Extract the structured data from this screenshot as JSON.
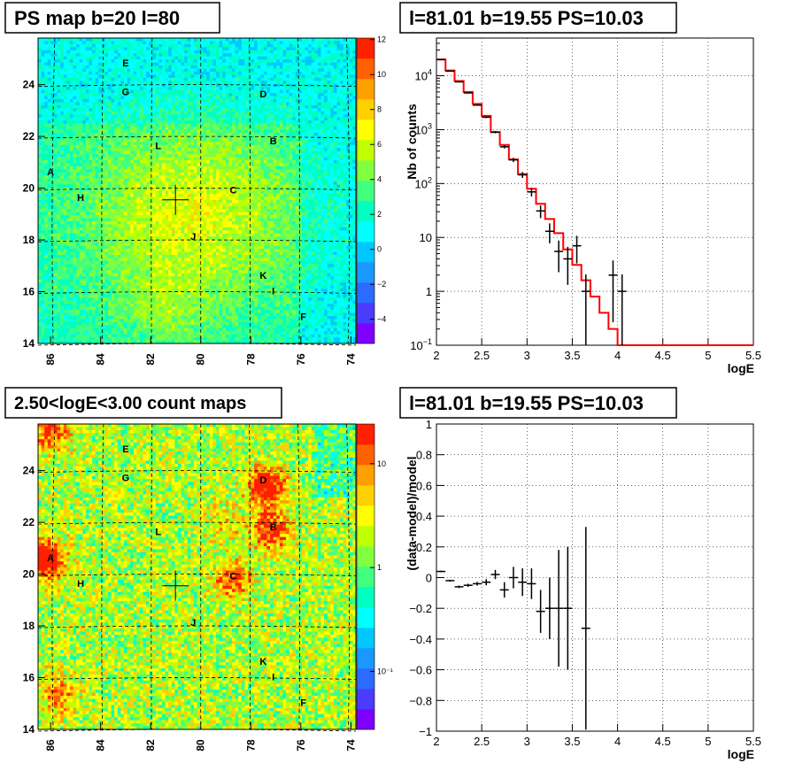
{
  "colors": {
    "frame": "#000000",
    "grid": "#000000",
    "model": "#ff0000",
    "data": "#000000",
    "palette": [
      "#7f00ff",
      "#4a3cff",
      "#2c6bff",
      "#1a98ff",
      "#00c8ff",
      "#00ffff",
      "#00ffc0",
      "#40ff80",
      "#80ff40",
      "#c0ff00",
      "#ffff00",
      "#ffd000",
      "#ffa000",
      "#ff6000",
      "#ff2000"
    ]
  },
  "panels": {
    "ps_map": {
      "title": "PS map b=20 l=80",
      "x_ticks": [
        "86",
        "84",
        "82",
        "80",
        "78",
        "76",
        "74"
      ],
      "y_ticks": [
        "14",
        "16",
        "18",
        "20",
        "22",
        "24"
      ],
      "colorbar_ticks": [
        "12",
        "10",
        "8",
        "6",
        "4",
        "2",
        "0",
        "−2",
        "−4"
      ],
      "sources": [
        "E",
        "G",
        "D",
        "L",
        "B",
        "A",
        "C",
        "H",
        "J",
        "K",
        "I",
        "F"
      ]
    },
    "count_map": {
      "title": "2.50<logE<3.00 count maps",
      "x_ticks": [
        "86",
        "84",
        "82",
        "80",
        "78",
        "76",
        "74"
      ],
      "y_ticks": [
        "14",
        "16",
        "18",
        "20",
        "22",
        "24"
      ],
      "colorbar_ticks": [
        "10",
        "1",
        "10⁻¹"
      ],
      "sources": [
        "E",
        "G",
        "D",
        "L",
        "B",
        "A",
        "C",
        "H",
        "J",
        "K",
        "I",
        "F"
      ]
    },
    "spectrum": {
      "title": "l=81.01 b=19.55 PS=10.03",
      "xlabel": "logE",
      "ylabel": "Nb of counts",
      "x_ticks": [
        "2",
        "2.5",
        "3",
        "3.5",
        "4",
        "4.5",
        "5",
        "5.5"
      ],
      "y_ticks": [
        "10",
        "1"
      ],
      "y_ticks_exp": [
        {
          "base": "10",
          "exp": "4"
        },
        {
          "base": "10",
          "exp": "3"
        },
        {
          "base": "10",
          "exp": "2"
        },
        {
          "base": "10",
          "exp": "−1"
        }
      ]
    },
    "residual": {
      "title": "l=81.01 b=19.55 PS=10.03",
      "xlabel": "logE",
      "ylabel": "(data-model)/model",
      "x_ticks": [
        "2",
        "2.5",
        "3",
        "3.5",
        "4",
        "4.5",
        "5",
        "5.5"
      ],
      "y_ticks": [
        "1",
        "0.8",
        "0.6",
        "0.4",
        "0.2",
        "0",
        "−0.2",
        "−0.4",
        "−0.6",
        "−0.8",
        "−1"
      ]
    }
  },
  "chart_data": [
    {
      "type": "heatmap",
      "title": "PS map b=20 l=80",
      "xlim": [
        86.5,
        73.8
      ],
      "ylim": [
        14,
        25.8
      ],
      "zlim": [
        -5,
        12
      ],
      "sources": [
        {
          "name": "E",
          "l": 83.0,
          "b": 24.7
        },
        {
          "name": "G",
          "l": 83.0,
          "b": 23.6
        },
        {
          "name": "D",
          "l": 77.5,
          "b": 23.5
        },
        {
          "name": "L",
          "l": 81.7,
          "b": 21.5
        },
        {
          "name": "B",
          "l": 77.1,
          "b": 21.7
        },
        {
          "name": "A",
          "l": 86.0,
          "b": 20.5
        },
        {
          "name": "C",
          "l": 78.7,
          "b": 19.8
        },
        {
          "name": "H",
          "l": 84.8,
          "b": 19.5
        },
        {
          "name": "J",
          "l": 80.3,
          "b": 18.0
        },
        {
          "name": "K",
          "l": 77.5,
          "b": 16.5
        },
        {
          "name": "I",
          "l": 77.1,
          "b": 15.9
        },
        {
          "name": "F",
          "l": 75.9,
          "b": 14.9
        }
      ],
      "marker": {
        "l": 81.01,
        "b": 19.55
      }
    },
    {
      "type": "heatmap",
      "title": "2.50<logE<3.00 count maps",
      "xlim": [
        86.5,
        73.8
      ],
      "ylim": [
        14,
        25.8
      ],
      "zscale": "log",
      "sources": [
        {
          "name": "E",
          "l": 83.0,
          "b": 24.7
        },
        {
          "name": "G",
          "l": 83.0,
          "b": 23.6
        },
        {
          "name": "D",
          "l": 77.5,
          "b": 23.5
        },
        {
          "name": "L",
          "l": 81.7,
          "b": 21.5
        },
        {
          "name": "B",
          "l": 77.1,
          "b": 21.7
        },
        {
          "name": "A",
          "l": 86.0,
          "b": 20.5
        },
        {
          "name": "C",
          "l": 78.7,
          "b": 19.8
        },
        {
          "name": "H",
          "l": 84.8,
          "b": 19.5
        },
        {
          "name": "J",
          "l": 80.3,
          "b": 18.0
        },
        {
          "name": "K",
          "l": 77.5,
          "b": 16.5
        },
        {
          "name": "I",
          "l": 77.1,
          "b": 15.9
        },
        {
          "name": "F",
          "l": 75.9,
          "b": 14.9
        }
      ],
      "marker": {
        "l": 81.01,
        "b": 19.55
      }
    },
    {
      "type": "line",
      "title": "l=81.01 b=19.55 PS=10.03",
      "xlabel": "logE",
      "ylabel": "Nb of counts",
      "xlim": [
        2,
        5.5
      ],
      "ylim": [
        0.1,
        50000
      ],
      "yscale": "log",
      "grid": true,
      "model_step": {
        "edges": [
          2.0,
          2.1,
          2.2,
          2.3,
          2.4,
          2.5,
          2.6,
          2.7,
          2.8,
          2.9,
          3.0,
          3.1,
          3.2,
          3.3,
          3.4,
          3.5,
          3.6,
          3.7,
          3.8,
          3.9,
          4.0,
          4.1,
          5.5
        ],
        "values": [
          20000,
          12500,
          8000,
          5000,
          3000,
          1800,
          900,
          520,
          280,
          150,
          80,
          42,
          22,
          12,
          6,
          3.1,
          1.6,
          0.8,
          0.4,
          0.2,
          0.1,
          0.1
        ]
      },
      "data_points": [
        {
          "x": 2.05,
          "y": 20000
        },
        {
          "x": 2.15,
          "y": 12200
        },
        {
          "x": 2.25,
          "y": 7700
        },
        {
          "x": 2.35,
          "y": 4800
        },
        {
          "x": 2.45,
          "y": 2850
        },
        {
          "x": 2.55,
          "y": 1700
        },
        {
          "x": 2.65,
          "y": 900
        },
        {
          "x": 2.75,
          "y": 480
        },
        {
          "x": 2.85,
          "y": 275
        },
        {
          "x": 2.95,
          "y": 145
        },
        {
          "x": 3.05,
          "y": 70
        },
        {
          "x": 3.15,
          "y": 31
        },
        {
          "x": 3.25,
          "y": 13
        },
        {
          "x": 3.35,
          "y": 5.5
        },
        {
          "x": 3.45,
          "y": 4
        },
        {
          "x": 3.55,
          "y": 7
        },
        {
          "x": 3.65,
          "y": 1
        },
        {
          "x": 3.95,
          "y": 2
        },
        {
          "x": 4.05,
          "y": 1
        }
      ]
    },
    {
      "type": "scatter",
      "title": "l=81.01 b=19.55 PS=10.03",
      "xlabel": "logE",
      "ylabel": "(data-model)/model",
      "xlim": [
        2,
        5.5
      ],
      "ylim": [
        -1,
        1
      ],
      "grid": true,
      "points": [
        {
          "x": 2.05,
          "y": 0.04,
          "err": 0.005
        },
        {
          "x": 2.15,
          "y": -0.02,
          "err": 0.006
        },
        {
          "x": 2.25,
          "y": -0.06,
          "err": 0.008
        },
        {
          "x": 2.35,
          "y": -0.05,
          "err": 0.01
        },
        {
          "x": 2.45,
          "y": -0.04,
          "err": 0.012
        },
        {
          "x": 2.55,
          "y": -0.03,
          "err": 0.02
        },
        {
          "x": 2.65,
          "y": 0.02,
          "err": 0.03
        },
        {
          "x": 2.75,
          "y": -0.08,
          "err": 0.05
        },
        {
          "x": 2.85,
          "y": 0.0,
          "err": 0.07
        },
        {
          "x": 2.95,
          "y": -0.03,
          "err": 0.09
        },
        {
          "x": 3.05,
          "y": -0.04,
          "err": 0.1
        },
        {
          "x": 3.15,
          "y": -0.22,
          "err": 0.14
        },
        {
          "x": 3.25,
          "y": -0.2,
          "err": 0.2
        },
        {
          "x": 3.35,
          "y": -0.2,
          "err": 0.38
        },
        {
          "x": 3.45,
          "y": -0.2,
          "err": 0.4
        },
        {
          "x": 3.65,
          "y": -0.33,
          "err": 0.66
        }
      ]
    }
  ]
}
